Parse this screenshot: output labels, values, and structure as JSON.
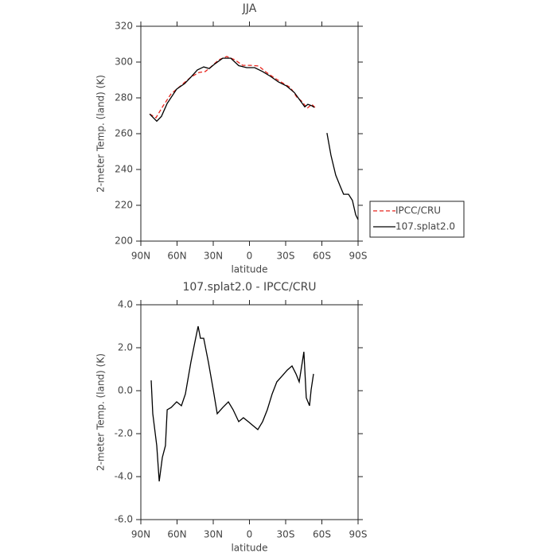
{
  "chart_data": [
    {
      "type": "line",
      "title": "JJA",
      "xlabel": "latitude",
      "ylabel": "2-meter Temp. (land) (K)",
      "xlim": [
        90,
        -90
      ],
      "ylim": [
        200,
        320
      ],
      "xticks": [
        {
          "value": 90,
          "label": "90N"
        },
        {
          "value": 60,
          "label": "60N"
        },
        {
          "value": 30,
          "label": "30N"
        },
        0,
        {
          "value": -30,
          "label": "30S"
        },
        {
          "value": -60,
          "label": "60S"
        },
        {
          "value": -90,
          "label": "90S"
        }
      ],
      "yticks": [
        200,
        220,
        240,
        260,
        280,
        300,
        320
      ],
      "legend": "right",
      "series": [
        {
          "name": "IPCC/CRU",
          "color": "#e8241c",
          "line_style": "dashed",
          "x": [
            82.7,
            77.5,
            71.5,
            65,
            56.4,
            48.5,
            41.9,
            36.6,
            32,
            25.4,
            18.8,
            12.2,
            5.6,
            -1,
            -7.6,
            -14.2,
            -20.8,
            -27.3,
            -33.9,
            -39.2,
            -43.8,
            -47.8,
            -51.7,
            -55
          ],
          "values": [
            271,
            268.9,
            275.6,
            282.2,
            287.1,
            291.6,
            294.2,
            294.7,
            297.3,
            301.3,
            303.1,
            301.3,
            298.2,
            298.2,
            297.8,
            294.2,
            291.1,
            288.4,
            285.8,
            280.4,
            277.8,
            274.2,
            276.4,
            274.2
          ]
        },
        {
          "name": "107.splat2.0",
          "color": "#000000",
          "line_style": "solid",
          "x": [
            82.7,
            76.8,
            72.9,
            68.2,
            60.3,
            53.7,
            48.5,
            43.2,
            37.9,
            33.3,
            28.7,
            22.1,
            15.5,
            8.9,
            2.3,
            -4.3,
            -10.9,
            -17.5,
            -24,
            -30.6,
            -37.2,
            -41.8,
            -45.8,
            -48.4,
            -51.7,
            -53.7,
            -60,
            -64.2,
            -67.5,
            -71.5,
            -75.5,
            -78,
            -82.1,
            -85.3,
            -88,
            -90
          ],
          "values": [
            271,
            267,
            269.7,
            276.9,
            284.9,
            288,
            291.6,
            295.6,
            297.3,
            296.4,
            299,
            302.2,
            302.2,
            298,
            296.9,
            296.9,
            294.7,
            292,
            288.9,
            286.7,
            283,
            278.7,
            275,
            276.4,
            275.6,
            274.7,
            null,
            260.4,
            248,
            236.9,
            230.2,
            226.2,
            226.2,
            222.7,
            214.7,
            212
          ]
        }
      ]
    },
    {
      "type": "line",
      "title": "107.splat2.0 - IPCC/CRU",
      "xlabel": "latitude",
      "ylabel": "2-meter Temp. (land) (K)",
      "xlim": [
        90,
        -90
      ],
      "ylim": [
        -6,
        4
      ],
      "xticks": [
        {
          "value": 90,
          "label": "90N"
        },
        {
          "value": 60,
          "label": "60N"
        },
        {
          "value": 30,
          "label": "30N"
        },
        0,
        {
          "value": -30,
          "label": "30S"
        },
        {
          "value": -60,
          "label": "60S"
        },
        {
          "value": -90,
          "label": "90S"
        }
      ],
      "yticks": [
        {
          "value": -6,
          "label": "-6.0"
        },
        {
          "value": -4,
          "label": "-4.0"
        },
        {
          "value": -2,
          "label": "-2.0"
        },
        {
          "value": 0,
          "label": "0.0"
        },
        {
          "value": 2,
          "label": "2.0"
        },
        {
          "value": 4,
          "label": "4.0"
        }
      ],
      "series": [
        {
          "color": "#000000",
          "line_style": "solid",
          "x": [
            81.4,
            80.1,
            76.8,
            74.8,
            72.2,
            69.6,
            68.2,
            64.9,
            60.3,
            56.4,
            53.1,
            48.5,
            45.2,
            42.5,
            40.6,
            37.9,
            34,
            30,
            26.7,
            22.1,
            17.5,
            13.5,
            8.9,
            5,
            1,
            -3,
            -6.9,
            -10.9,
            -14.8,
            -18.8,
            -22.7,
            -27.3,
            -31.3,
            -35.3,
            -38.6,
            -41.2,
            -43.8,
            -45.1,
            -47.1,
            -49.8,
            -51.1,
            -53.1
          ],
          "values": [
            0.48,
            -1.07,
            -2.56,
            -4.22,
            -3.11,
            -2.56,
            -0.89,
            -0.78,
            -0.52,
            -0.7,
            -0.15,
            1.33,
            2.26,
            3,
            2.44,
            2.44,
            1.33,
            0.04,
            -1.07,
            -0.78,
            -0.52,
            -0.89,
            -1.44,
            -1.26,
            -1.44,
            -1.63,
            -1.81,
            -1.44,
            -0.89,
            -0.15,
            0.41,
            0.7,
            0.96,
            1.15,
            0.78,
            0.41,
            1.33,
            1.81,
            -0.33,
            -0.7,
            0.04,
            0.78
          ]
        }
      ]
    }
  ]
}
